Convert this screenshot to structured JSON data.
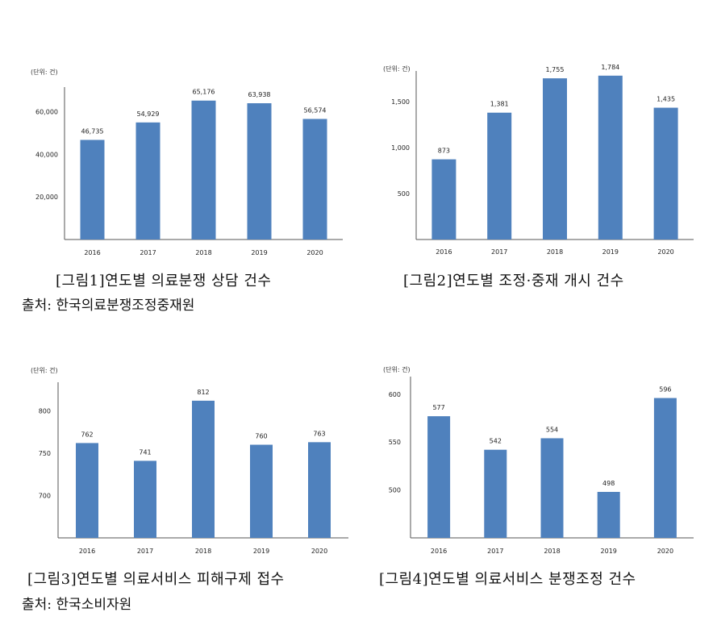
{
  "chart_data": [
    {
      "type": "bar",
      "unit": "(단위: 건)",
      "categories": [
        "2016",
        "2017",
        "2018",
        "2019",
        "2020"
      ],
      "values": [
        46735,
        54929,
        65176,
        63938,
        56574
      ],
      "value_labels": [
        "46,735",
        "54,929",
        "65,176",
        "63,938",
        "56,574"
      ],
      "ylim": [
        0,
        70000
      ],
      "yticks": [
        20000,
        40000,
        60000
      ],
      "ytick_labels": [
        "20,000",
        "40,000",
        "60,000"
      ],
      "caption": "[그림1]연도별 의료분쟁 상담 건수",
      "source": "출처: 한국의료분쟁조정중재원",
      "color": "#4f81bd"
    },
    {
      "type": "bar",
      "unit": "(단위: 건)",
      "categories": [
        "2016",
        "2017",
        "2018",
        "2019",
        "2020"
      ],
      "values": [
        873,
        1381,
        1755,
        1784,
        1435
      ],
      "value_labels": [
        "873",
        "1,381",
        "1,755",
        "1,784",
        "1,435"
      ],
      "ylim": [
        0,
        1800
      ],
      "yticks": [
        500,
        1000,
        1500
      ],
      "ytick_labels": [
        "500",
        "1,000",
        "1,500"
      ],
      "caption": "[그림2]연도별 조정·중재 개시 건수",
      "source": "",
      "color": "#4f81bd"
    },
    {
      "type": "bar",
      "unit": "(단위: 건)",
      "categories": [
        "2016",
        "2017",
        "2018",
        "2019",
        "2020"
      ],
      "values": [
        762,
        741,
        812,
        760,
        763
      ],
      "value_labels": [
        "762",
        "741",
        "812",
        "760",
        "763"
      ],
      "ylim": [
        650,
        830
      ],
      "yticks": [
        700,
        750,
        800
      ],
      "ytick_labels": [
        "700",
        "750",
        "800"
      ],
      "caption": "[그림3]연도별 의료서비스 피해구제 접수",
      "source": "출처: 한국소비자원",
      "color": "#4f81bd"
    },
    {
      "type": "bar",
      "unit": "(단위: 건)",
      "categories": [
        "2016",
        "2017",
        "2018",
        "2019",
        "2020"
      ],
      "values": [
        577,
        542,
        554,
        498,
        596
      ],
      "value_labels": [
        "577",
        "542",
        "554",
        "498",
        "596"
      ],
      "ylim": [
        450,
        615
      ],
      "yticks": [
        500,
        550,
        600
      ],
      "ytick_labels": [
        "500",
        "550",
        "600"
      ],
      "caption": "[그림4]연도별 의료서비스 분쟁조정 건수",
      "source": "",
      "color": "#4f81bd"
    }
  ]
}
